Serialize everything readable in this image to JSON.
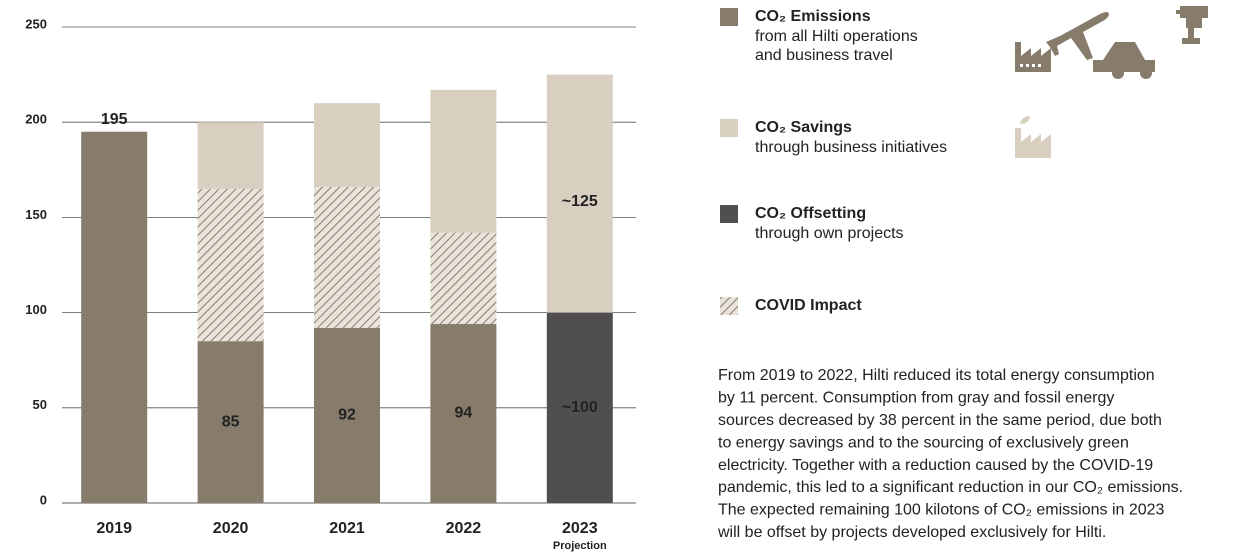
{
  "chart_data": {
    "type": "stacked_bar",
    "categories": [
      "2019",
      "2020",
      "2021",
      "2022",
      "2023"
    ],
    "category_sublabels": [
      null,
      null,
      null,
      null,
      "Projection"
    ],
    "series": [
      {
        "name": "CO₂ Emissions",
        "description": [
          "from all Hilti operations",
          "and business travel"
        ],
        "color": "#877c6c",
        "values": [
          195,
          85,
          92,
          94,
          null
        ],
        "value_labels": [
          "195",
          "85",
          "92",
          "94",
          null
        ]
      },
      {
        "name": "CO₂ Savings",
        "description": [
          "through business initiatives"
        ],
        "color": "#d8cfc1",
        "values": [
          null,
          35,
          44,
          75,
          125
        ],
        "value_labels": [
          null,
          null,
          null,
          null,
          "~125"
        ]
      },
      {
        "name": "CO₂ Offsetting",
        "description": [
          "through own projects"
        ],
        "color": "#504e50",
        "values": [
          null,
          null,
          null,
          null,
          100
        ],
        "value_labels": [
          null,
          null,
          null,
          null,
          "~100"
        ]
      },
      {
        "name": "COVID Impact",
        "description": [],
        "color": "#6d6357",
        "hatch": true,
        "values": [
          null,
          80,
          74,
          48,
          null
        ]
      }
    ],
    "ylim": [
      0,
      250
    ],
    "yticks": [
      0,
      50,
      100,
      150,
      200,
      250
    ],
    "grid": true,
    "paragraph": [
      "From 2019 to 2022, Hilti reduced its total energy consumption",
      "by 11 percent. Consumption from gray and fossil energy",
      "sources decreased by 38 percent in the same period, due both",
      "to energy savings and to the sourcing of exclusively green",
      "electricity. Together with a reduction caused by the COVID-19",
      "pandemic, this led to a significant reduction in our CO₂ emissions.",
      "The expected remaining 100 kilotons of CO₂ emissions in 2023",
      "will be offset by projects developed exclusively for Hilti."
    ]
  }
}
